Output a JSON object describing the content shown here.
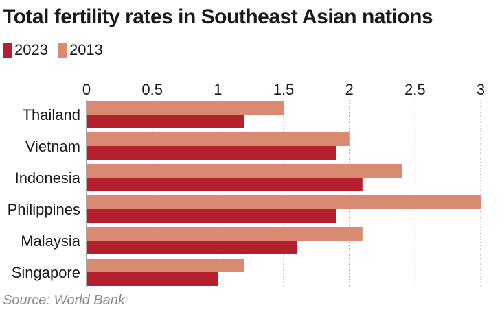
{
  "chart_data": {
    "type": "bar",
    "orientation": "horizontal",
    "title": "Total fertility rates in Southeast Asian nations",
    "categories": [
      "Thailand",
      "Vietnam",
      "Indonesia",
      "Philippines",
      "Malaysia",
      "Singapore"
    ],
    "series": [
      {
        "name": "2023",
        "values": [
          1.2,
          1.9,
          2.1,
          1.9,
          1.6,
          1.0
        ],
        "color": "#b5202e"
      },
      {
        "name": "2013",
        "values": [
          1.5,
          2.0,
          2.4,
          3.0,
          2.1,
          1.2
        ],
        "color": "#d98a70"
      }
    ],
    "xlim": [
      0,
      3
    ],
    "xticks": [
      "0",
      "0.5",
      "1",
      "1.5",
      "2",
      "2.5",
      "3"
    ],
    "xtick_values": [
      0,
      0.5,
      1,
      1.5,
      2,
      2.5,
      3
    ],
    "xaxis_position": "top",
    "grid": "vertical dotted",
    "legend_placement": "top-left",
    "source": "Source: World Bank"
  }
}
